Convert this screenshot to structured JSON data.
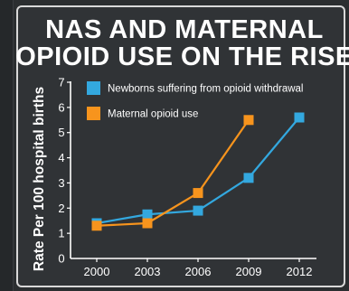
{
  "chart_data": {
    "type": "line",
    "title_lines": [
      "NAS AND MATERNAL",
      "OPIOID USE ON THE RISE"
    ],
    "ylabel": "Rate Per 100 hospital births",
    "xlabel": "",
    "x": [
      "2000",
      "2003",
      "2006",
      "2009",
      "2012"
    ],
    "ylim": [
      0,
      7
    ],
    "yticks": [
      1,
      2,
      3,
      4,
      5,
      6,
      7
    ],
    "y_zero_label": "0",
    "grid": false,
    "legend_position": "top-left",
    "series": [
      {
        "name": "Newborns suffering from opioid withdrawal",
        "color": "#33a8df",
        "values": [
          1.4,
          1.75,
          1.9,
          3.2,
          5.6
        ]
      },
      {
        "name": "Maternal opioid use",
        "color": "#f7941d",
        "values": [
          1.3,
          1.4,
          2.6,
          5.5,
          null
        ]
      }
    ],
    "axis_color": "#ffffff"
  }
}
